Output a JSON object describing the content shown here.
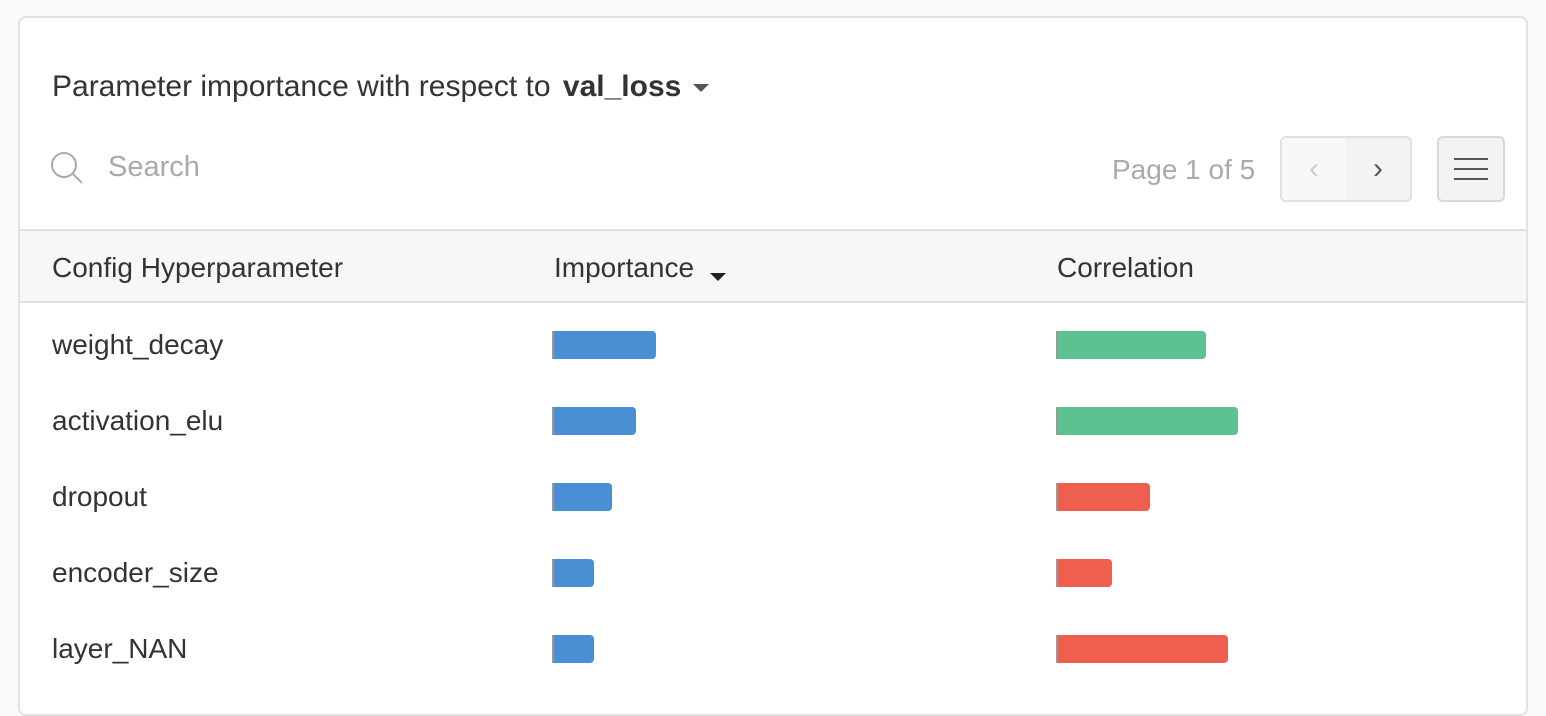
{
  "header": {
    "title_prefix": "Parameter importance with respect to",
    "metric": "val_loss"
  },
  "search": {
    "placeholder": "Search",
    "value": ""
  },
  "pagination": {
    "label": "Page 1 of 5",
    "current": 1,
    "total": 5
  },
  "table": {
    "columns": [
      "Config Hyperparameter",
      "Importance",
      "Correlation"
    ],
    "sort_column": "Importance",
    "sort_direction": "descending",
    "rows": [
      {
        "name": "weight_decay",
        "importance": 0.26,
        "correlation": 0.375
      },
      {
        "name": "activation_elu",
        "importance": 0.21,
        "correlation": 0.455
      },
      {
        "name": "dropout",
        "importance": 0.15,
        "correlation": -0.235
      },
      {
        "name": "encoder_size",
        "importance": 0.105,
        "correlation": -0.14
      },
      {
        "name": "layer_NAN",
        "importance": 0.105,
        "correlation": -0.43
      }
    ]
  },
  "colors": {
    "importance": "#4a8ed4",
    "positive": "#5cc290",
    "negative": "#ef5f50"
  }
}
